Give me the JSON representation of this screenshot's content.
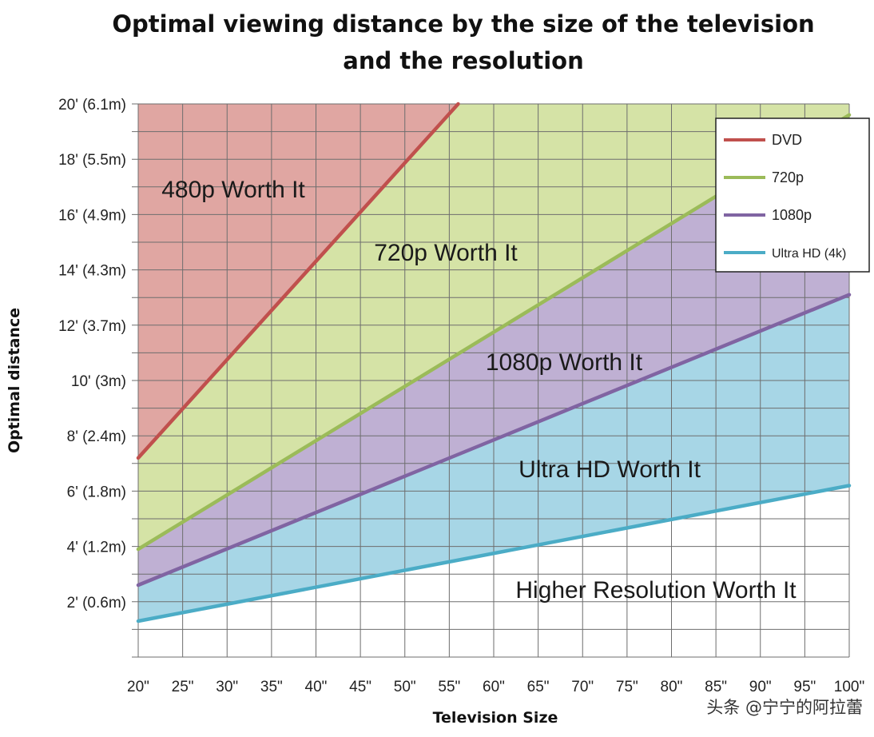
{
  "chart_data": {
    "type": "area",
    "title_line1": "Optimal viewing distance by the size of the television",
    "title_line2": "and the resolution",
    "xlabel": "Television  Size",
    "ylabel": "Optimal distance",
    "x": [
      20,
      25,
      30,
      35,
      40,
      45,
      50,
      55,
      60,
      65,
      70,
      75,
      80,
      85,
      90,
      95,
      100
    ],
    "x_tick_labels": [
      "20\"",
      "25\"",
      "30\"",
      "35\"",
      "40\"",
      "45\"",
      "50\"",
      "55\"",
      "60\"",
      "65\"",
      "70\"",
      "75\"",
      "80\"",
      "85\"",
      "90\"",
      "95\"",
      "100\""
    ],
    "y_ticks": [
      2,
      4,
      6,
      8,
      10,
      12,
      14,
      16,
      18,
      20
    ],
    "y_tick_labels": [
      "2' (0.6m)",
      "4' (1.2m)",
      "6' (1.8m)",
      "8' (2.4m)",
      "10' (3m)",
      "12' (3.7m)",
      "14' (4.3m)",
      "16' (4.9m)",
      "18' (5.5m)",
      "20' (6.1m)"
    ],
    "xlim": [
      20,
      100
    ],
    "ylim": [
      0,
      20
    ],
    "grid": true,
    "legend_position": "top-right",
    "series": [
      {
        "name": "DVD",
        "color": "#c0504d",
        "x": [
          20,
          56
        ],
        "y": [
          7.2,
          20
        ]
      },
      {
        "name": "720p",
        "color": "#9bbb59",
        "x": [
          20,
          100
        ],
        "y": [
          3.9,
          19.6
        ]
      },
      {
        "name": "1080p",
        "color": "#8064a2",
        "x": [
          20,
          100
        ],
        "y": [
          2.6,
          13.1
        ]
      },
      {
        "name": "Ultra HD (4k)",
        "color": "#4bacc6",
        "x": [
          20,
          100
        ],
        "y": [
          1.3,
          6.2
        ]
      }
    ],
    "region_fills": {
      "480p": "#e0a6a2",
      "720p": "#d5e3a6",
      "1080p": "#bfb0d3",
      "ultra": "#a7d6e6",
      "higher": "#ffffff"
    },
    "region_labels": [
      "480p Worth It",
      "720p Worth It",
      "1080p Worth It",
      "Ultra HD Worth It",
      "Higher Resolution Worth It"
    ]
  },
  "watermark": "头条 @宁宁的阿拉蕾"
}
